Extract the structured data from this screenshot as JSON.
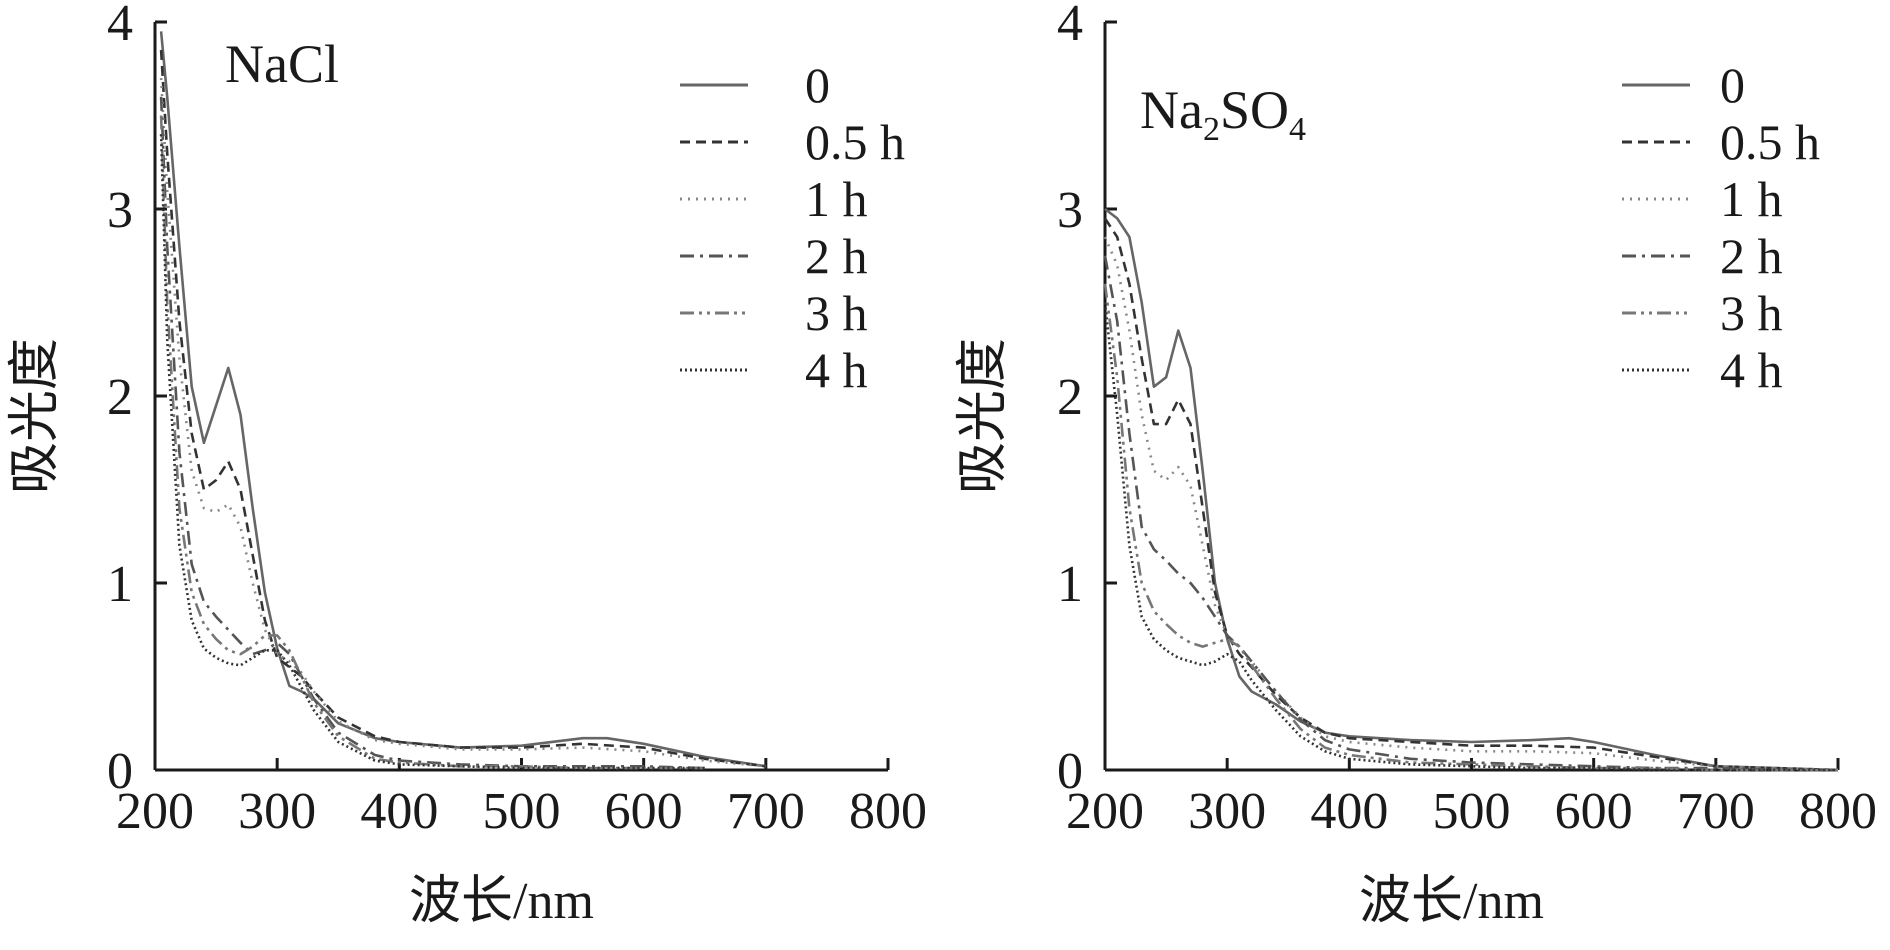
{
  "chart_data": [
    {
      "type": "line",
      "title_parts": [
        "NaCl"
      ],
      "xlabel": "波长/nm",
      "ylabel": "吸光度",
      "xlim": [
        200,
        800
      ],
      "ylim": [
        0,
        4
      ],
      "xticks": [
        200,
        300,
        400,
        500,
        600,
        700,
        800
      ],
      "yticks": [
        0,
        1,
        2,
        3,
        4
      ],
      "grid": false,
      "legend_position": "top-right",
      "series": [
        {
          "name": "0",
          "style": "solid",
          "color": "#666666",
          "x": [
            205,
            210,
            220,
            230,
            240,
            250,
            260,
            270,
            280,
            290,
            300,
            310,
            320,
            330,
            350,
            380,
            400,
            450,
            500,
            550,
            570,
            600,
            650,
            700
          ],
          "y": [
            3.95,
            3.6,
            2.8,
            2.05,
            1.75,
            1.95,
            2.15,
            1.9,
            1.4,
            0.95,
            0.65,
            0.45,
            0.42,
            0.38,
            0.25,
            0.17,
            0.15,
            0.12,
            0.13,
            0.17,
            0.17,
            0.14,
            0.07,
            0.02
          ]
        },
        {
          "name": "0.5 h",
          "style": "dash",
          "color": "#333333",
          "x": [
            205,
            210,
            220,
            230,
            240,
            250,
            260,
            270,
            280,
            290,
            300,
            310,
            320,
            330,
            350,
            380,
            400,
            450,
            500,
            550,
            600,
            650,
            700
          ],
          "y": [
            3.85,
            3.3,
            2.4,
            1.8,
            1.5,
            1.55,
            1.65,
            1.5,
            1.15,
            0.8,
            0.6,
            0.55,
            0.5,
            0.42,
            0.28,
            0.18,
            0.15,
            0.12,
            0.12,
            0.14,
            0.12,
            0.06,
            0.02
          ]
        },
        {
          "name": "1 h",
          "style": "dot",
          "color": "#888888",
          "x": [
            205,
            210,
            220,
            230,
            240,
            250,
            260,
            270,
            280,
            290,
            300,
            310,
            320,
            330,
            350,
            380,
            400,
            450,
            500,
            550,
            600,
            650,
            700
          ],
          "y": [
            3.7,
            3.1,
            2.2,
            1.6,
            1.4,
            1.38,
            1.42,
            1.3,
            1.0,
            0.75,
            0.62,
            0.58,
            0.52,
            0.42,
            0.26,
            0.16,
            0.14,
            0.11,
            0.11,
            0.12,
            0.1,
            0.05,
            0.02
          ]
        },
        {
          "name": "2 h",
          "style": "dashdot",
          "color": "#555555",
          "x": [
            205,
            210,
            220,
            230,
            240,
            250,
            260,
            270,
            280,
            290,
            300,
            310,
            320,
            330,
            350,
            380,
            400,
            450,
            500,
            550,
            600,
            650
          ],
          "y": [
            3.6,
            2.8,
            1.7,
            1.1,
            0.9,
            0.82,
            0.75,
            0.68,
            0.62,
            0.64,
            0.68,
            0.62,
            0.5,
            0.38,
            0.2,
            0.08,
            0.05,
            0.03,
            0.02,
            0.02,
            0.02,
            0.01
          ]
        },
        {
          "name": "3 h",
          "style": "dashdotdot",
          "color": "#777777",
          "x": [
            205,
            210,
            220,
            230,
            240,
            250,
            260,
            270,
            280,
            290,
            300,
            310,
            320,
            330,
            350,
            380,
            400,
            450,
            500,
            550,
            600,
            650
          ],
          "y": [
            3.5,
            2.5,
            1.4,
            0.95,
            0.78,
            0.7,
            0.64,
            0.62,
            0.66,
            0.72,
            0.72,
            0.64,
            0.5,
            0.36,
            0.18,
            0.06,
            0.04,
            0.02,
            0.02,
            0.01,
            0.01,
            0.01
          ]
        },
        {
          "name": "4 h",
          "style": "densedot",
          "color": "#333333",
          "x": [
            205,
            210,
            220,
            230,
            240,
            250,
            260,
            270,
            280,
            290,
            300,
            310,
            320,
            330,
            350,
            380,
            400,
            450,
            500,
            550,
            600,
            650
          ],
          "y": [
            3.4,
            2.3,
            1.2,
            0.8,
            0.65,
            0.6,
            0.57,
            0.56,
            0.6,
            0.64,
            0.64,
            0.56,
            0.44,
            0.32,
            0.15,
            0.05,
            0.03,
            0.02,
            0.01,
            0.01,
            0.01,
            0.01
          ]
        }
      ]
    },
    {
      "type": "line",
      "title_parts": [
        "Na",
        "2",
        "SO",
        "4"
      ],
      "xlabel": "波长/nm",
      "ylabel": "吸光度",
      "xlim": [
        200,
        800
      ],
      "ylim": [
        0,
        4
      ],
      "xticks": [
        200,
        300,
        400,
        500,
        600,
        700,
        800
      ],
      "yticks": [
        0,
        1,
        2,
        3,
        4
      ],
      "grid": false,
      "legend_position": "top-right",
      "series": [
        {
          "name": "0",
          "style": "solid",
          "color": "#666666",
          "x": [
            200,
            210,
            220,
            230,
            240,
            250,
            260,
            270,
            280,
            290,
            300,
            310,
            320,
            340,
            360,
            380,
            400,
            450,
            500,
            550,
            580,
            600,
            650,
            700,
            750,
            800
          ],
          "y": [
            3.0,
            2.95,
            2.85,
            2.5,
            2.05,
            2.1,
            2.35,
            2.15,
            1.6,
            1.0,
            0.7,
            0.5,
            0.42,
            0.35,
            0.26,
            0.2,
            0.18,
            0.16,
            0.15,
            0.16,
            0.17,
            0.15,
            0.08,
            0.02,
            0.01,
            0.0
          ]
        },
        {
          "name": "0.5 h",
          "style": "dash",
          "color": "#333333",
          "x": [
            200,
            210,
            220,
            230,
            240,
            250,
            260,
            270,
            280,
            290,
            300,
            310,
            320,
            340,
            360,
            380,
            400,
            450,
            500,
            550,
            600,
            650,
            700,
            750,
            800
          ],
          "y": [
            2.95,
            2.85,
            2.6,
            2.2,
            1.85,
            1.85,
            1.98,
            1.85,
            1.4,
            0.95,
            0.72,
            0.62,
            0.55,
            0.4,
            0.28,
            0.2,
            0.17,
            0.15,
            0.13,
            0.13,
            0.12,
            0.07,
            0.02,
            0.01,
            0.0
          ]
        },
        {
          "name": "1 h",
          "style": "dot",
          "color": "#888888",
          "x": [
            200,
            210,
            220,
            230,
            240,
            250,
            260,
            270,
            280,
            290,
            300,
            310,
            320,
            340,
            360,
            380,
            400,
            450,
            500,
            550,
            600,
            650,
            700,
            750,
            800
          ],
          "y": [
            2.85,
            2.7,
            2.35,
            1.9,
            1.6,
            1.55,
            1.62,
            1.52,
            1.2,
            0.88,
            0.72,
            0.66,
            0.58,
            0.42,
            0.28,
            0.18,
            0.15,
            0.12,
            0.1,
            0.1,
            0.09,
            0.05,
            0.02,
            0.01,
            0.0
          ]
        },
        {
          "name": "2 h",
          "style": "dashdot",
          "color": "#555555",
          "x": [
            200,
            210,
            220,
            230,
            240,
            250,
            260,
            270,
            280,
            290,
            300,
            310,
            320,
            340,
            360,
            380,
            400,
            450,
            500,
            550,
            600,
            650,
            700,
            750,
            800
          ],
          "y": [
            2.75,
            2.4,
            1.8,
            1.3,
            1.18,
            1.12,
            1.05,
            1.0,
            0.92,
            0.82,
            0.72,
            0.66,
            0.58,
            0.42,
            0.27,
            0.16,
            0.11,
            0.06,
            0.04,
            0.03,
            0.02,
            0.01,
            0.01,
            0.0,
            0.0
          ]
        },
        {
          "name": "3 h",
          "style": "dashdotdot",
          "color": "#777777",
          "x": [
            200,
            210,
            220,
            230,
            240,
            250,
            260,
            270,
            280,
            290,
            300,
            310,
            320,
            340,
            360,
            380,
            400,
            450,
            500,
            550,
            600,
            650,
            700,
            750,
            800
          ],
          "y": [
            2.6,
            2.1,
            1.4,
            1.0,
            0.85,
            0.78,
            0.72,
            0.68,
            0.66,
            0.68,
            0.7,
            0.66,
            0.56,
            0.38,
            0.22,
            0.12,
            0.08,
            0.04,
            0.03,
            0.02,
            0.01,
            0.01,
            0.0,
            0.0,
            0.0
          ]
        },
        {
          "name": "4 h",
          "style": "densedot",
          "color": "#333333",
          "x": [
            200,
            210,
            220,
            230,
            240,
            250,
            260,
            270,
            280,
            290,
            300,
            310,
            320,
            340,
            360,
            380,
            400,
            450,
            500,
            550,
            600,
            650,
            700,
            750,
            800
          ],
          "y": [
            2.5,
            1.9,
            1.2,
            0.82,
            0.7,
            0.64,
            0.6,
            0.58,
            0.56,
            0.58,
            0.62,
            0.58,
            0.48,
            0.32,
            0.18,
            0.1,
            0.06,
            0.03,
            0.02,
            0.01,
            0.01,
            0.0,
            0.0,
            0.0,
            0.0
          ]
        }
      ]
    }
  ]
}
